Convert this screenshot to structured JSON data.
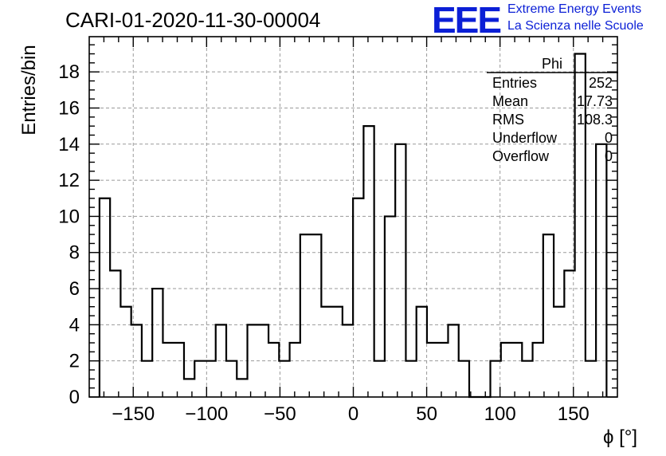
{
  "header": {
    "run_title": "CARI-01-2020-11-30-00004",
    "logo_text": "EEE",
    "tagline_1": "Extreme Energy Events",
    "tagline_2": "La Scienza nelle Scuole"
  },
  "stats_box": {
    "name": "Phi",
    "rows": [
      {
        "label": "Entries",
        "value": "252"
      },
      {
        "label": "Mean",
        "value": "17.73"
      },
      {
        "label": "RMS",
        "value": "108.3"
      },
      {
        "label": "Underflow",
        "value": "0"
      },
      {
        "label": "Overflow",
        "value": "0"
      }
    ]
  },
  "chart_data": {
    "type": "bar",
    "style": "step-histogram",
    "title": "CARI-01-2020-11-30-00004",
    "xlabel": "ϕ [°]",
    "ylabel": "Entries/bin",
    "xlim": [
      -180,
      180
    ],
    "ylim": [
      0,
      19.95
    ],
    "bin_width": 7.2,
    "bin_edges_start": -173,
    "x_ticks": [
      -150,
      -100,
      -50,
      0,
      50,
      100,
      150
    ],
    "y_ticks": [
      0,
      2,
      4,
      6,
      8,
      10,
      12,
      14,
      16,
      18
    ],
    "grid": true,
    "values": [
      11,
      7,
      5,
      4,
      2,
      6,
      3,
      3,
      1,
      2,
      2,
      4,
      2,
      1,
      4,
      4,
      3,
      2,
      3,
      9,
      9,
      5,
      5,
      4,
      11,
      15,
      2,
      10,
      14,
      2,
      5,
      3,
      3,
      4,
      2,
      0,
      0,
      2,
      3,
      3,
      2,
      3,
      9,
      5,
      7,
      19,
      2,
      14
    ],
    "line_color": "#000000",
    "grid_color": "#9a9a9a"
  }
}
